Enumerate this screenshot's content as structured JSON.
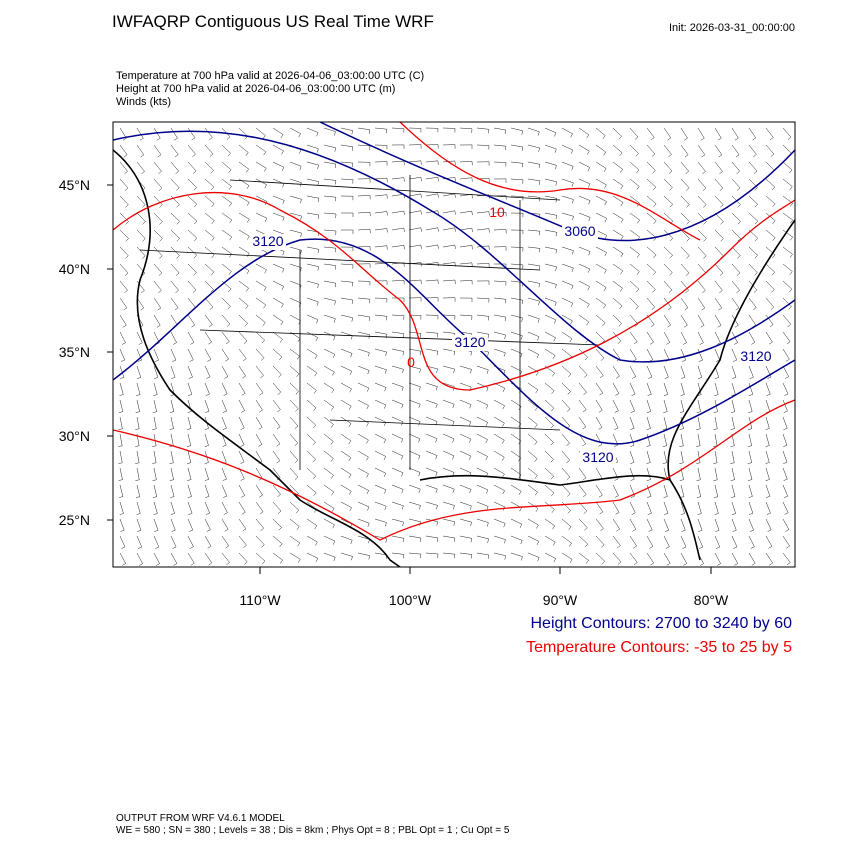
{
  "header": {
    "title": "IWFAQRP Contiguous US Real Time WRF",
    "init": "Init: 2026-03-31_00:00:00"
  },
  "fields": [
    "Temperature at 700 hPa valid at 2026-04-06_03:00:00 UTC   (C)",
    "Height at 700 hPa valid at 2026-04-06_03:00:00 UTC   (m)",
    "Winds   (kts)"
  ],
  "map": {
    "lat_labels": [
      "45°N",
      "40°N",
      "35°N",
      "30°N",
      "25°N"
    ],
    "lon_labels": [
      "110°W",
      "100°W",
      "90°W",
      "80°W"
    ],
    "height_labels": [
      "3120",
      "3060",
      "3120",
      "3120",
      "3120"
    ],
    "temperature_labels": [
      "10",
      "0"
    ]
  },
  "legend": {
    "height": "Height Contours: 2700 to 3240 by 60",
    "temperature": "Temperature Contours: -35 to 25 by 5"
  },
  "footer": [
    "OUTPUT FROM WRF V4.6.1 MODEL",
    "WE = 580 ; SN = 380 ; Levels = 38 ; Dis = 8km ; Phys Opt = 8 ; PBL Opt = 1 ; Cu Opt = 5"
  ]
}
